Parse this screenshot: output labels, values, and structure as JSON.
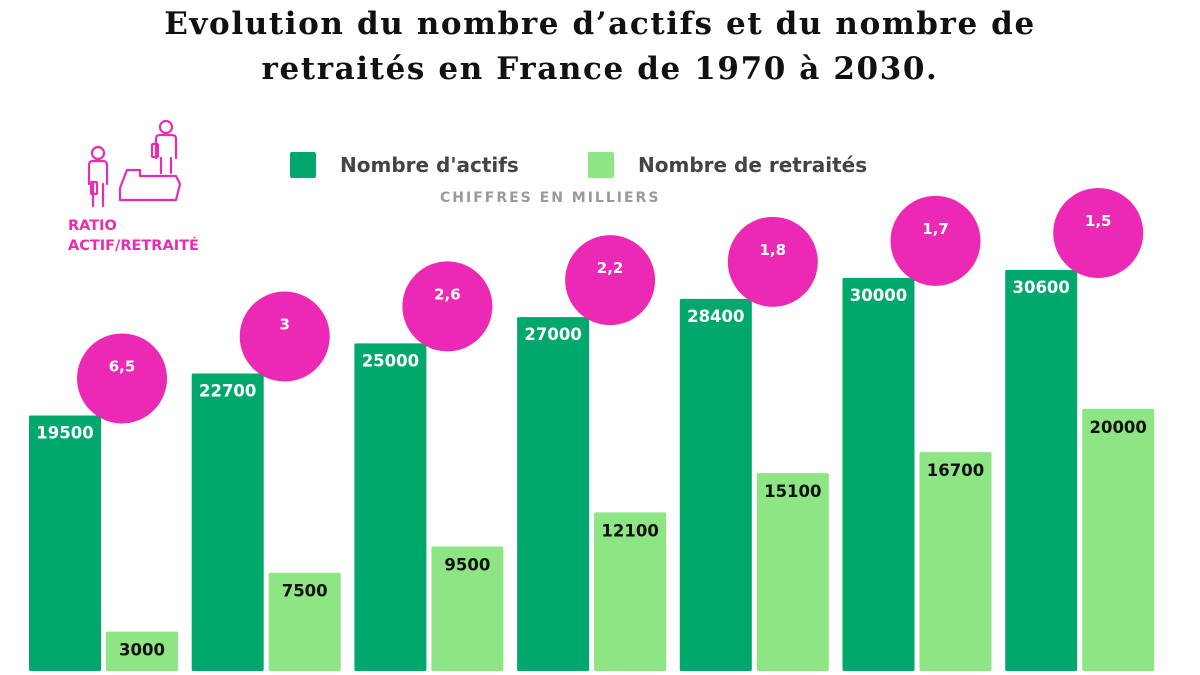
{
  "header": {
    "title_line1": "Evolution du nombre d’actifs et du nombre de",
    "title_line2": "retraités en France de 1970 à 2030."
  },
  "subtitle": "CHIFFRES EN MILLIERS",
  "ratio_label": "RATIO\nACTIF/RETRAITÉ",
  "icons": {
    "ratio": "people-balance-icon"
  },
  "colors": {
    "actifs": "#00a86b",
    "retraites": "#8ee583",
    "ratio_circle": "#ec29b5",
    "ratio_text": "#e82db0",
    "label_light": "#ffffff",
    "label_dark": "#111111"
  },
  "chart_data": {
    "type": "bar",
    "title": "Evolution du nombre d’actifs et du nombre de retraités en France de 1970 à 2030.",
    "subtitle": "CHIFFRES EN MILLIERS",
    "legend": [
      "Nombre d'actifs",
      "Nombre de retraités"
    ],
    "legend_placement": "top",
    "grid": false,
    "ylim": [
      0,
      32000
    ],
    "series": [
      {
        "name": "Nombre d'actifs",
        "values": [
          19500,
          22700,
          25000,
          27000,
          28400,
          30000,
          30600
        ],
        "labels": [
          "19500",
          "22700",
          "25000",
          "27000",
          "28400",
          "30000",
          "30600"
        ]
      },
      {
        "name": "Nombre de retraités",
        "values": [
          3000,
          7500,
          9500,
          12100,
          15100,
          16700,
          20000
        ],
        "labels": [
          "3000",
          "7500",
          "9500",
          "12100",
          "15100",
          "16700",
          "20000"
        ]
      }
    ],
    "ratio": {
      "name": "RATIO ACTIF/RETRAITÉ",
      "values": [
        6.5,
        3,
        2.6,
        2.2,
        1.8,
        1.7,
        1.5
      ],
      "labels": [
        "6,5",
        "3",
        "2,6",
        "2,2",
        "1,8",
        "1,7",
        "1,5"
      ]
    }
  }
}
